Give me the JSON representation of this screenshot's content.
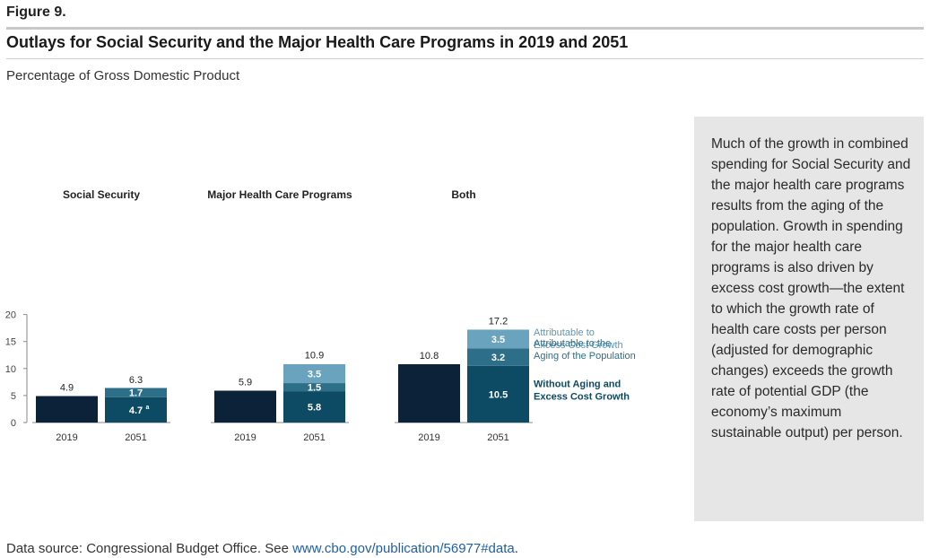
{
  "figure_label": "Figure 9.",
  "title": "Outlays for Social Security and the Major Health Care Programs in 2019 and 2051",
  "subtitle": "Percentage of Gross Domestic Product",
  "note": "Much of the growth in combined spending for Social Security and the major health care programs results from the aging of the population. Growth in spending for the major health care programs is also driven by excess cost growth—the extent to which the growth rate of health care costs per person (adjusted for demographic changes) exceeds the growth rate of potential GDP (the economy’s maximum sustainable output) per person.",
  "source": {
    "prefix": "Data source: Congressional Budget Office. See ",
    "link_text": "www.cbo.gov/publication/56977#data",
    "suffix": "."
  },
  "colors": {
    "bar_2019": "#0b2239",
    "base": "#0d4a63",
    "aging": "#2d6f88",
    "excess": "#6aa3bd",
    "axis": "#8a8a8a",
    "excess_label": "#5e97b2",
    "aging_label": "#2d6f88",
    "base_label": "#0d4a63"
  },
  "chart_data": {
    "type": "bar",
    "stacked": true,
    "ylim": [
      0,
      20
    ],
    "yticks": [
      0,
      5,
      10,
      15,
      20
    ],
    "grid": false,
    "groups": [
      {
        "title": "Social Security",
        "bars": [
          {
            "category": "2019",
            "total": 4.9,
            "segments": []
          },
          {
            "category": "2051",
            "total": 6.3,
            "segments": [
              {
                "key": "base",
                "value": 4.7,
                "label": "4.7",
                "marker": "a"
              },
              {
                "key": "aging",
                "value": 1.7,
                "label": "1.7"
              }
            ]
          }
        ]
      },
      {
        "title": "Major Health Care Programs",
        "bars": [
          {
            "category": "2019",
            "total": 5.9,
            "segments": []
          },
          {
            "category": "2051",
            "total": 10.9,
            "segments": [
              {
                "key": "base",
                "value": 5.8,
                "label": "5.8"
              },
              {
                "key": "aging",
                "value": 1.5,
                "label": "1.5"
              },
              {
                "key": "excess",
                "value": 3.5,
                "label": "3.5"
              }
            ]
          }
        ]
      },
      {
        "title": "Both",
        "bars": [
          {
            "category": "2019",
            "total": 10.8,
            "segments": []
          },
          {
            "category": "2051",
            "total": 17.2,
            "segments": [
              {
                "key": "base",
                "value": 10.5,
                "label": "10.5"
              },
              {
                "key": "aging",
                "value": 3.2,
                "label": "3.2"
              },
              {
                "key": "excess",
                "value": 3.5,
                "label": "3.5"
              }
            ]
          }
        ]
      }
    ],
    "legend": [
      {
        "key": "excess",
        "lines": [
          "Attributable to",
          "Excess Cost Growth"
        ]
      },
      {
        "key": "aging",
        "lines": [
          "Attributable to the",
          "Aging of the Population"
        ]
      },
      {
        "key": "base",
        "lines": [
          "Without Aging and",
          "Excess Cost Growth"
        ]
      }
    ]
  }
}
